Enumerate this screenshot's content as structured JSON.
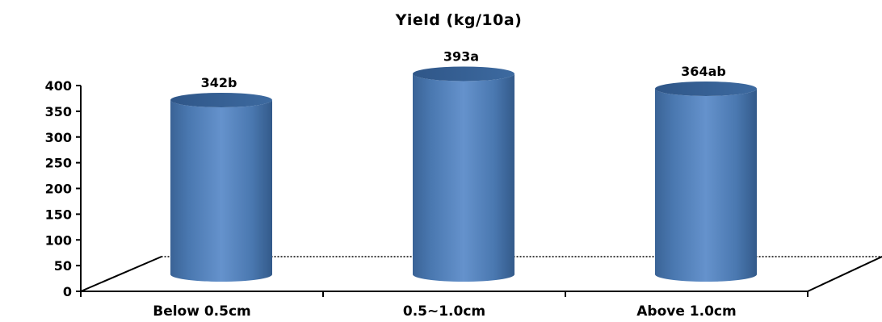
{
  "chart_data": {
    "type": "bar",
    "title": "Yield (kg/10a)",
    "xlabel": "",
    "ylabel": "",
    "categories": [
      "Below 0.5cm",
      "0.5~1.0cm",
      "Above 1.0cm"
    ],
    "values": [
      342,
      393,
      364
    ],
    "data_labels": [
      "342b",
      "393a",
      "364ab"
    ],
    "ylim": [
      0,
      400
    ],
    "yticks": [
      0,
      50,
      100,
      150,
      200,
      250,
      300,
      350,
      400
    ],
    "ytick_labels": [
      "0",
      "50",
      "100",
      "150",
      "200",
      "250",
      "300",
      "350",
      "400"
    ],
    "bar_shape": "3d-cylinder",
    "bar_color": "#4f81bd",
    "grid": false,
    "legend": "none"
  }
}
